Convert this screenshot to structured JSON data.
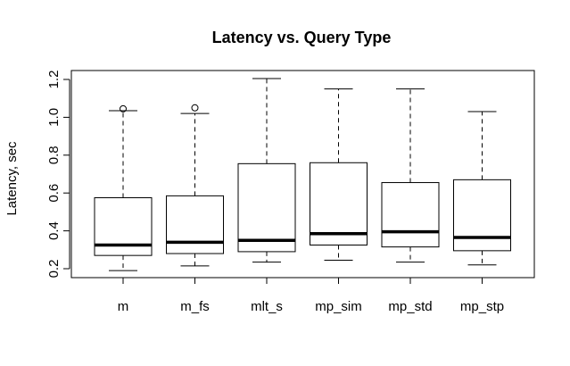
{
  "chart_data": {
    "type": "boxplot",
    "title": "Latency vs. Query Type",
    "xlabel": "",
    "ylabel": "Latency, sec",
    "ylim": [
      0.15,
      1.25
    ],
    "yticks": [
      "0.2",
      "0.4",
      "0.6",
      "0.8",
      "1.0",
      "1.2"
    ],
    "grid": false,
    "categories": [
      "m",
      "m_fs",
      "mlt_s",
      "mp_sim",
      "mp_std",
      "mp_stp"
    ],
    "boxes": [
      {
        "whisker_low": 0.19,
        "q1": 0.27,
        "median": 0.325,
        "q3": 0.575,
        "whisker_high": 1.035,
        "outliers": [
          1.045
        ]
      },
      {
        "whisker_low": 0.215,
        "q1": 0.28,
        "median": 0.34,
        "q3": 0.585,
        "whisker_high": 1.02,
        "outliers": [
          1.05
        ]
      },
      {
        "whisker_low": 0.235,
        "q1": 0.29,
        "median": 0.35,
        "q3": 0.755,
        "whisker_high": 1.205,
        "outliers": []
      },
      {
        "whisker_low": 0.245,
        "q1": 0.325,
        "median": 0.385,
        "q3": 0.76,
        "whisker_high": 1.15,
        "outliers": []
      },
      {
        "whisker_low": 0.235,
        "q1": 0.315,
        "median": 0.395,
        "q3": 0.655,
        "whisker_high": 1.15,
        "outliers": []
      },
      {
        "whisker_low": 0.22,
        "q1": 0.295,
        "median": 0.365,
        "q3": 0.67,
        "whisker_high": 1.03,
        "outliers": []
      }
    ]
  }
}
